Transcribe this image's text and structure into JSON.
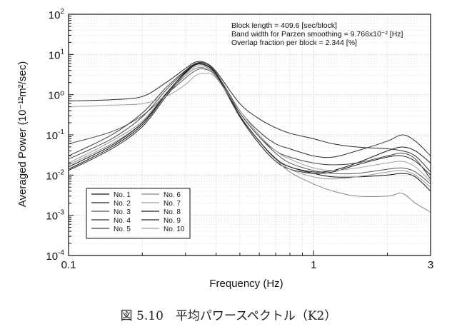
{
  "caption": "図 5.10　平均パワースペクトル（K2）",
  "chart_data": {
    "type": "line",
    "title": "",
    "xlabel": "Frequency (Hz)",
    "ylabel": "Averaged Power (10⁻¹²m²/sec)",
    "xscale": "log",
    "yscale": "log",
    "xlim": [
      0.1,
      3
    ],
    "ylim": [
      0.0001,
      100
    ],
    "grid": true,
    "x_ticks": [
      {
        "value": 0.1,
        "label": "0.1"
      },
      {
        "value": 1,
        "label": "1"
      },
      {
        "value": 3,
        "label": "3"
      }
    ],
    "y_ticks": [
      {
        "value": 0.0001,
        "base": "10",
        "exp": "-4"
      },
      {
        "value": 0.001,
        "base": "10",
        "exp": "-3"
      },
      {
        "value": 0.01,
        "base": "10",
        "exp": "-2"
      },
      {
        "value": 0.1,
        "base": "10",
        "exp": "-1"
      },
      {
        "value": 1,
        "label": "10⁰"
      },
      {
        "value": 10,
        "base": "10",
        "exp": "1"
      },
      {
        "value": 100,
        "base": "10",
        "exp": "2"
      }
    ],
    "annotations": [
      "Block length = 409.6 [sec/block]",
      "Band width for Parzen smoothing = 9.766x10⁻² [Hz]",
      "Overlap fraction per block = 2.344 [%]"
    ],
    "legend_position": "bottom-left",
    "series": [
      {
        "name": "No. 1",
        "color": "#111111",
        "x": [
          0.1,
          0.15,
          0.2,
          0.25,
          0.3,
          0.33,
          0.36,
          0.4,
          0.5,
          0.6,
          0.7,
          0.8,
          1.0,
          1.2,
          1.5,
          2.0,
          2.3,
          2.6,
          3.0
        ],
        "y": [
          0.014,
          0.05,
          0.18,
          1.0,
          3.6,
          5.8,
          5.6,
          3.2,
          0.3,
          0.07,
          0.025,
          0.016,
          0.011,
          0.009,
          0.009,
          0.01,
          0.011,
          0.009,
          0.004
        ]
      },
      {
        "name": "No. 2",
        "color": "#222222",
        "x": [
          0.1,
          0.15,
          0.2,
          0.25,
          0.3,
          0.33,
          0.36,
          0.4,
          0.5,
          0.6,
          0.7,
          0.8,
          1.0,
          1.2,
          1.5,
          2.0,
          2.3,
          2.6,
          3.0
        ],
        "y": [
          0.013,
          0.045,
          0.16,
          0.9,
          3.4,
          5.5,
          5.4,
          3.1,
          0.28,
          0.06,
          0.022,
          0.014,
          0.011,
          0.012,
          0.018,
          0.028,
          0.03,
          0.022,
          0.01
        ]
      },
      {
        "name": "No. 3",
        "color": "#555555",
        "x": [
          0.1,
          0.15,
          0.2,
          0.25,
          0.3,
          0.33,
          0.36,
          0.4,
          0.5,
          0.6,
          0.7,
          0.8,
          1.0,
          1.2,
          1.5,
          2.0,
          2.3,
          2.6,
          3.0
        ],
        "y": [
          0.06,
          0.12,
          0.3,
          1.0,
          2.6,
          4.0,
          4.3,
          2.8,
          0.35,
          0.09,
          0.035,
          0.02,
          0.013,
          0.011,
          0.011,
          0.014,
          0.015,
          0.012,
          0.006
        ]
      },
      {
        "name": "No. 4",
        "color": "#333333",
        "x": [
          0.1,
          0.15,
          0.2,
          0.25,
          0.3,
          0.33,
          0.36,
          0.4,
          0.5,
          0.6,
          0.7,
          0.8,
          1.0,
          1.2,
          1.5,
          2.0,
          2.3,
          2.6,
          3.0
        ],
        "y": [
          0.03,
          0.1,
          0.35,
          1.5,
          4.0,
          6.0,
          6.0,
          3.5,
          0.4,
          0.12,
          0.06,
          0.045,
          0.03,
          0.028,
          0.04,
          0.07,
          0.1,
          0.07,
          0.03
        ]
      },
      {
        "name": "No. 5",
        "color": "#444444",
        "x": [
          0.1,
          0.15,
          0.2,
          0.25,
          0.3,
          0.33,
          0.36,
          0.4,
          0.5,
          0.6,
          0.7,
          0.8,
          1.0,
          1.2,
          1.5,
          2.0,
          2.3,
          2.6,
          3.0
        ],
        "y": [
          0.025,
          0.08,
          0.28,
          1.3,
          3.8,
          5.6,
          5.5,
          3.3,
          0.35,
          0.09,
          0.04,
          0.028,
          0.02,
          0.018,
          0.02,
          0.03,
          0.035,
          0.025,
          0.008
        ]
      },
      {
        "name": "No. 6",
        "color": "#888888",
        "x": [
          0.1,
          0.15,
          0.2,
          0.25,
          0.3,
          0.33,
          0.36,
          0.4,
          0.5,
          0.6,
          0.7,
          0.8,
          1.0,
          1.2,
          1.5,
          2.0,
          2.3,
          2.6,
          3.0
        ],
        "y": [
          0.018,
          0.06,
          0.2,
          1.0,
          3.0,
          4.5,
          4.6,
          2.9,
          0.3,
          0.07,
          0.025,
          0.012,
          0.006,
          0.004,
          0.003,
          0.003,
          0.0035,
          0.002,
          0.0012
        ]
      },
      {
        "name": "No. 7",
        "color": "#999999",
        "x": [
          0.1,
          0.15,
          0.2,
          0.25,
          0.3,
          0.33,
          0.36,
          0.4,
          0.5,
          0.6,
          0.7,
          0.8,
          1.0,
          1.2,
          1.5,
          2.0,
          2.3,
          2.6,
          3.0
        ],
        "y": [
          0.02,
          0.07,
          0.22,
          1.1,
          3.3,
          5.0,
          5.0,
          3.0,
          0.3,
          0.07,
          0.026,
          0.014,
          0.009,
          0.008,
          0.009,
          0.012,
          0.013,
          0.01,
          0.005
        ]
      },
      {
        "name": "No. 8",
        "color": "#1a1a1a",
        "x": [
          0.1,
          0.15,
          0.2,
          0.25,
          0.3,
          0.33,
          0.36,
          0.4,
          0.5,
          0.6,
          0.7,
          0.8,
          1.0,
          1.2,
          1.5,
          2.0,
          2.3,
          2.6,
          3.0
        ],
        "y": [
          0.016,
          0.055,
          0.2,
          1.05,
          3.7,
          5.7,
          5.6,
          3.2,
          0.3,
          0.07,
          0.026,
          0.016,
          0.012,
          0.013,
          0.02,
          0.04,
          0.05,
          0.04,
          0.02
        ]
      },
      {
        "name": "No. 9",
        "color": "#2a2a2a",
        "x": [
          0.1,
          0.15,
          0.2,
          0.25,
          0.3,
          0.33,
          0.36,
          0.4,
          0.5,
          0.6,
          0.7,
          0.8,
          1.0,
          1.2,
          1.5,
          2.0,
          2.3,
          2.6,
          3.0
        ],
        "y": [
          0.7,
          0.75,
          0.9,
          2.0,
          4.5,
          6.5,
          6.3,
          3.8,
          0.6,
          0.25,
          0.15,
          0.11,
          0.08,
          0.06,
          0.05,
          0.045,
          0.04,
          0.03,
          0.012
        ]
      },
      {
        "name": "No. 10",
        "color": "#a0a0a0",
        "x": [
          0.1,
          0.15,
          0.2,
          0.25,
          0.3,
          0.33,
          0.36,
          0.4,
          0.5,
          0.6,
          0.7,
          0.8,
          1.0,
          1.2,
          1.5,
          2.0,
          2.3,
          2.6,
          3.0
        ],
        "y": [
          0.5,
          0.55,
          0.6,
          0.9,
          1.8,
          3.0,
          3.4,
          2.6,
          0.4,
          0.1,
          0.04,
          0.025,
          0.015,
          0.013,
          0.015,
          0.02,
          0.022,
          0.016,
          0.007
        ]
      }
    ]
  }
}
